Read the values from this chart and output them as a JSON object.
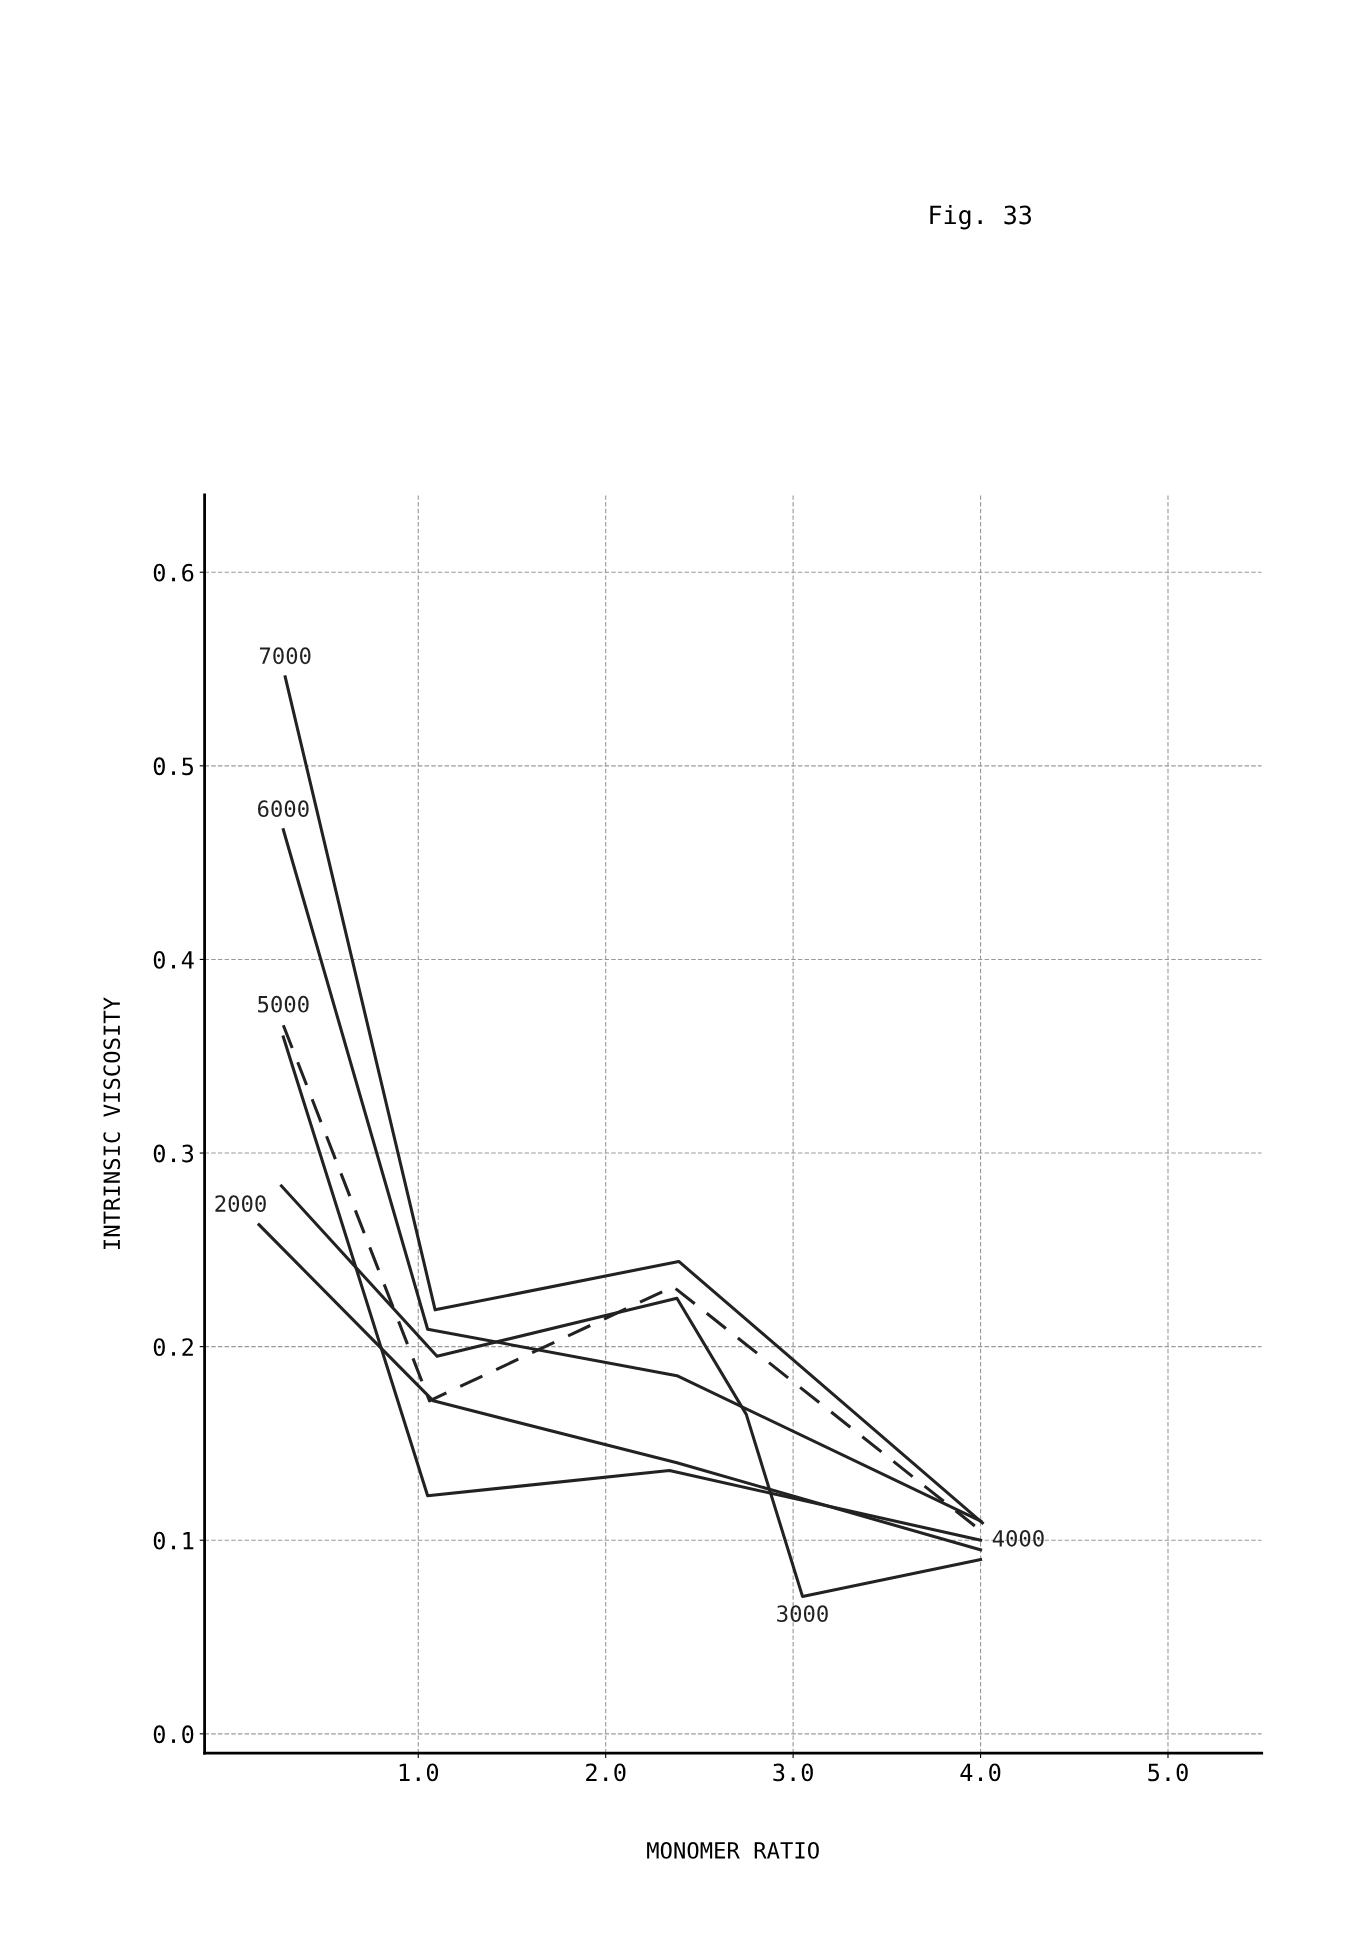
{
  "chart_data": {
    "type": "line",
    "xlabel": "MONOMER RATIO",
    "ylabel": "INTRINSIC VISCOSITY",
    "annotations": [
      "Fig. 33"
    ],
    "xlim": [
      -0.14,
      5.5
    ],
    "ylim": [
      -0.01,
      0.64
    ],
    "xticks": [
      {
        "value": 1,
        "label": "1.0"
      },
      {
        "value": 2,
        "label": "2.0"
      },
      {
        "value": 3,
        "label": "3.0"
      },
      {
        "value": 4,
        "label": "4.0"
      },
      {
        "value": 5,
        "label": "5.0"
      }
    ],
    "yticks": [
      {
        "value": 0,
        "label": "0.0"
      },
      {
        "value": 0.1,
        "label": "0.1"
      },
      {
        "value": 0.2,
        "label": "0.2"
      },
      {
        "value": 0.3,
        "label": "0.3"
      },
      {
        "value": 0.4,
        "label": "0.4"
      },
      {
        "value": 0.5,
        "label": "0.5"
      },
      {
        "value": 0.6,
        "label": "0.6"
      }
    ],
    "grid": true,
    "marker": "none",
    "line_style": "solid",
    "series": [
      {
        "name": "7000",
        "color": "#222222",
        "x": [
          0.29,
          1.09,
          2.39,
          4.01
        ],
        "values": [
          0.546,
          0.219,
          0.244,
          0.109
        ]
      },
      {
        "name": "6000",
        "color": "#222222",
        "x": [
          0.28,
          1.05,
          2.38,
          4.0
        ],
        "values": [
          0.467,
          0.209,
          0.185,
          0.11
        ]
      },
      {
        "name": "5000",
        "color": "#222222",
        "line_style": "dashed",
        "x": [
          0.28,
          1.06,
          2.36,
          4.0
        ],
        "values": [
          0.366,
          0.172,
          0.231,
          0.105
        ]
      },
      {
        "name": "4000",
        "color": "#222222",
        "x": [
          0.28,
          1.05,
          2.34,
          4.0
        ],
        "values": [
          0.36,
          0.123,
          0.136,
          0.1
        ]
      },
      {
        "name": "3000",
        "color": "#222222",
        "x": [
          0.27,
          1.1,
          2.38,
          2.75,
          3.05,
          4.0
        ],
        "values": [
          0.283,
          0.195,
          0.225,
          0.165,
          0.071,
          0.09
        ]
      },
      {
        "name": "2000",
        "color": "#222222",
        "x": [
          0.15,
          1.08,
          2.38,
          4.0
        ],
        "values": [
          0.263,
          0.172,
          0.14,
          0.095
        ]
      }
    ]
  }
}
